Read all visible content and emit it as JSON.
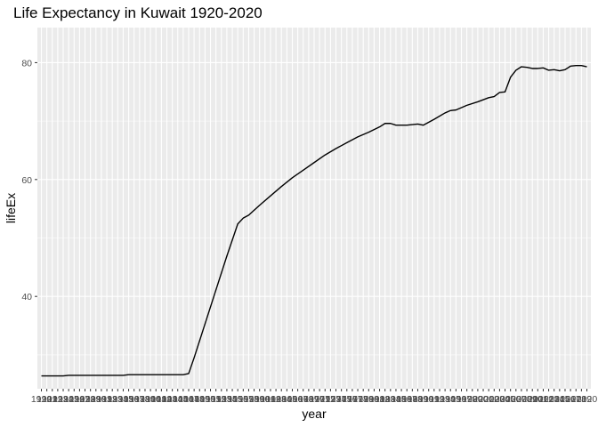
{
  "chart_data": {
    "type": "line",
    "title": "Life Expectancy in Kuwait 1920-2020",
    "xlabel": "year",
    "ylabel": "lifeEx",
    "x_range": [
      1920,
      2020
    ],
    "ylim": [
      24.2,
      86
    ],
    "yticks": [
      40,
      60,
      80
    ],
    "grid": true,
    "legend": "none",
    "colors": {
      "panel": "#ebebeb",
      "grid": "#ffffff",
      "line": "#000000"
    },
    "series": [
      {
        "values": [
          [
            1920,
            26.4
          ],
          [
            1924,
            26.4
          ],
          [
            1925,
            26.5
          ],
          [
            1935,
            26.5
          ],
          [
            1936,
            26.6
          ],
          [
            1938,
            26.6
          ],
          [
            1946,
            26.6
          ],
          [
            1947,
            26.8
          ],
          [
            1948,
            29.5
          ],
          [
            1950,
            35.3
          ],
          [
            1952,
            41.1
          ],
          [
            1954,
            46.9
          ],
          [
            1956,
            52.4
          ],
          [
            1957,
            53.4
          ],
          [
            1958,
            53.9
          ],
          [
            1960,
            55.6
          ],
          [
            1962,
            57.2
          ],
          [
            1964,
            58.8
          ],
          [
            1966,
            60.3
          ],
          [
            1968,
            61.6
          ],
          [
            1970,
            62.9
          ],
          [
            1972,
            64.2
          ],
          [
            1974,
            65.3
          ],
          [
            1976,
            66.3
          ],
          [
            1978,
            67.3
          ],
          [
            1980,
            68.1
          ],
          [
            1982,
            69.0
          ],
          [
            1983,
            69.6
          ],
          [
            1984,
            69.6
          ],
          [
            1985,
            69.3
          ],
          [
            1987,
            69.3
          ],
          [
            1989,
            69.5
          ],
          [
            1990,
            69.3
          ],
          [
            1992,
            70.3
          ],
          [
            1994,
            71.4
          ],
          [
            1995,
            71.8
          ],
          [
            1996,
            71.9
          ],
          [
            1998,
            72.7
          ],
          [
            2000,
            73.3
          ],
          [
            2002,
            74.0
          ],
          [
            2003,
            74.2
          ],
          [
            2004,
            74.9
          ],
          [
            2005,
            75.0
          ],
          [
            2006,
            77.5
          ],
          [
            2007,
            78.7
          ],
          [
            2008,
            79.3
          ],
          [
            2009,
            79.2
          ],
          [
            2010,
            79.0
          ],
          [
            2011,
            79.0
          ],
          [
            2012,
            79.1
          ],
          [
            2013,
            78.7
          ],
          [
            2014,
            78.8
          ],
          [
            2015,
            78.6
          ],
          [
            2016,
            78.8
          ],
          [
            2017,
            79.4
          ],
          [
            2018,
            79.5
          ],
          [
            2019,
            79.5
          ],
          [
            2020,
            79.3
          ]
        ]
      }
    ]
  }
}
